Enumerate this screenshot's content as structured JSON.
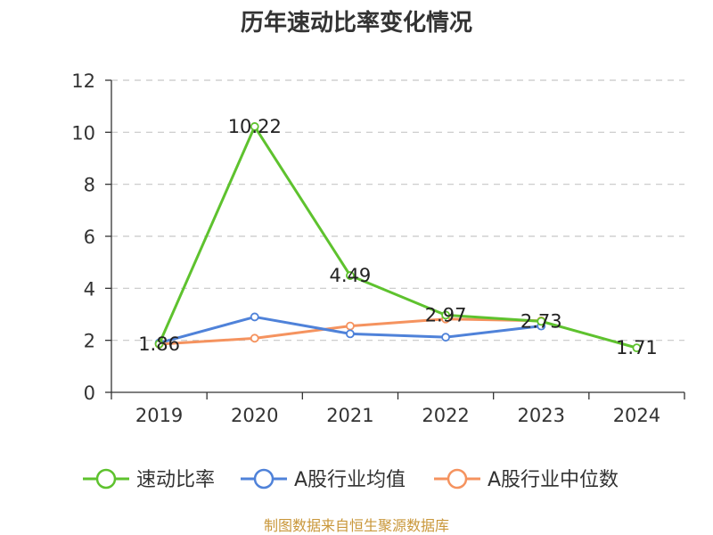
{
  "chart_data": {
    "type": "line",
    "title": "历年速动比率变化情况",
    "categories": [
      "2019",
      "2020",
      "2021",
      "2022",
      "2023",
      "2024"
    ],
    "ylim": [
      0,
      12
    ],
    "yticks": [
      0,
      2,
      4,
      6,
      8,
      10,
      12
    ],
    "grid": true,
    "legend_position": "bottom",
    "series": [
      {
        "name": "速动比率",
        "color": "#5ec22e",
        "values": [
          1.86,
          10.22,
          4.49,
          2.97,
          2.73,
          1.71
        ],
        "labels": [
          "1.86",
          "10.22",
          "4.49",
          "2.97",
          "2.73",
          "1.71"
        ]
      },
      {
        "name": "A股行业均值",
        "color": "#4f82d9",
        "values": [
          1.9,
          2.9,
          2.25,
          2.12,
          2.55,
          null
        ]
      },
      {
        "name": "A股行业中位数",
        "color": "#f5935f",
        "values": [
          1.85,
          2.08,
          2.55,
          2.82,
          2.75,
          null
        ]
      }
    ]
  },
  "footer": {
    "source": "制图数据来自恒生聚源数据库",
    "source_color": "#c9973a"
  }
}
